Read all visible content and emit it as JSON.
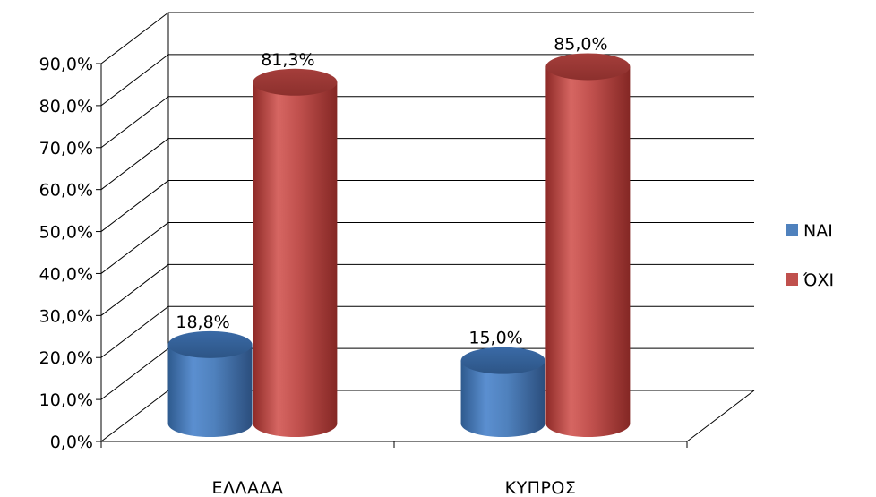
{
  "chart_data": {
    "type": "bar",
    "style": "3d-cylinder",
    "categories": [
      "ΕΛΛΑΔΑ",
      "ΚΥΠΡΟΣ"
    ],
    "series": [
      {
        "name": "ΝΑΙ",
        "color": "#4F81BD",
        "values": [
          18.8,
          15.0
        ],
        "labels": [
          "18,8%",
          "15,0%"
        ]
      },
      {
        "name": "ΌΧΙ",
        "color": "#C0504D",
        "values": [
          81.3,
          85.0
        ],
        "labels": [
          "81,3%",
          "85,0%"
        ]
      }
    ],
    "ylim": [
      0,
      90
    ],
    "yticks": [
      "0,0%",
      "10,0%",
      "20,0%",
      "30,0%",
      "40,0%",
      "50,0%",
      "60,0%",
      "70,0%",
      "80,0%",
      "90,0%"
    ],
    "grid": true,
    "legend": "right"
  }
}
